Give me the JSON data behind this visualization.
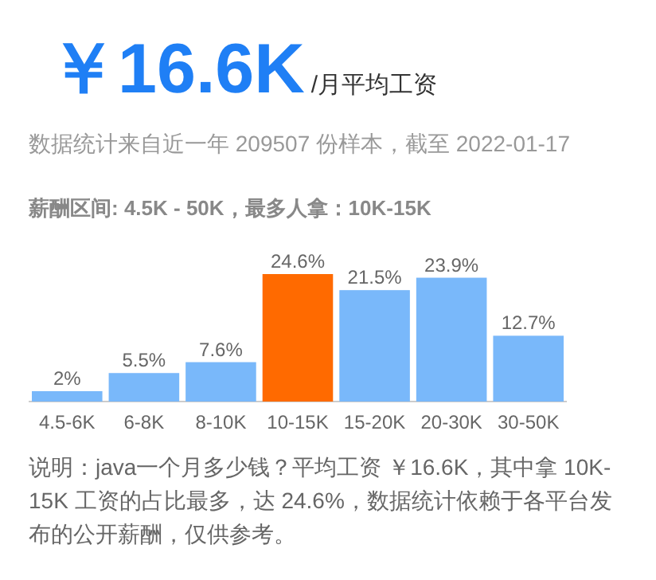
{
  "chart_data": {
    "type": "bar",
    "title": "￥16.6K",
    "subtitle": "/月平均工资",
    "annotations": [
      "数据统计来自近一年 209507 份样本，截至 2022-01-17",
      "薪酬区间: 4.5K - 50K，最多人拿：10K-15K",
      "说明：java一个月多少钱？平均工资 ￥16.6K，其中拿 10K-15K 工资的占比最多，达 24.6%，数据统计依赖于各平台发布的公开薪酬，仅供参考。"
    ],
    "categories": [
      "4.5-6K",
      "6-8K",
      "8-10K",
      "10-15K",
      "15-20K",
      "20-30K",
      "30-50K"
    ],
    "values": [
      2,
      5.5,
      7.6,
      24.6,
      21.5,
      23.9,
      12.7
    ],
    "colors": [
      "#79b8fa",
      "#79b8fa",
      "#79b8fa",
      "#ff6a00",
      "#79b8fa",
      "#79b8fa",
      "#79b8fa"
    ],
    "value_labels": [
      "2%",
      "5.5%",
      "7.6%",
      "24.6%",
      "21.5%",
      "23.9%",
      "12.7%"
    ]
  }
}
